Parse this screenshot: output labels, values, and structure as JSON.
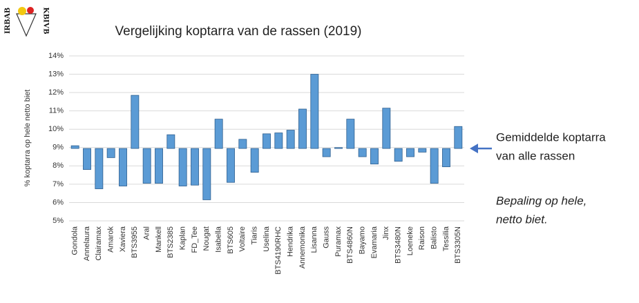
{
  "chart_data": {
    "type": "bar",
    "title": "Vergelijking koptarra van de rassen (2019)",
    "ylabel": "% koptarra op hele netto biet",
    "logo": [
      "IRBAB",
      "KBIVB"
    ],
    "annotations": [
      [
        "Gemiddelde koptarra",
        "van alle rassen"
      ],
      [
        "Bepaling op hele,",
        "netto biet."
      ]
    ],
    "categories": [
      "Gondola",
      "Annelaura",
      "Clairamax",
      "Amarok",
      "Xaviera",
      "BTS3955",
      "Aral",
      "Mankell",
      "BTS2385",
      "Kaplan",
      "FD_Tee",
      "Nougat",
      "Isabella",
      "BTS605",
      "Voltaire",
      "Tiaris",
      "Uselina",
      "BTS4190RHC",
      "Hendrika",
      "Annemonika",
      "Lisanna",
      "Gauss",
      "Puramax",
      "BTS4860N",
      "Bayamo",
      "Evamaria",
      "Jinx",
      "BTS3480N",
      "Loeneke",
      "Raison",
      "Balisto",
      "Tessilia",
      "BTS3305N"
    ],
    "values": [
      9.1,
      7.8,
      6.75,
      8.45,
      6.9,
      11.85,
      7.05,
      7.05,
      9.7,
      6.9,
      6.95,
      6.15,
      10.55,
      7.1,
      9.45,
      7.65,
      9.75,
      9.8,
      9.95,
      11.1,
      13.0,
      8.5,
      9.0,
      10.55,
      8.5,
      8.1,
      11.15,
      8.25,
      8.5,
      8.75,
      7.05,
      7.95,
      10.15
    ],
    "baseline": 8.95,
    "color": "#5b9bd5",
    "ylim": [
      5,
      14
    ],
    "yticks": [
      {
        "value": 5,
        "label": "5%"
      },
      {
        "value": 6,
        "label": "6%"
      },
      {
        "value": 7,
        "label": "7%"
      },
      {
        "value": 8,
        "label": "8%"
      },
      {
        "value": 9,
        "label": "9%"
      },
      {
        "value": 10,
        "label": "10%"
      },
      {
        "value": 11,
        "label": "11%"
      },
      {
        "value": 12,
        "label": "12%"
      },
      {
        "value": 13,
        "label": "13%"
      },
      {
        "value": 14,
        "label": "14%"
      }
    ],
    "grid": true
  }
}
